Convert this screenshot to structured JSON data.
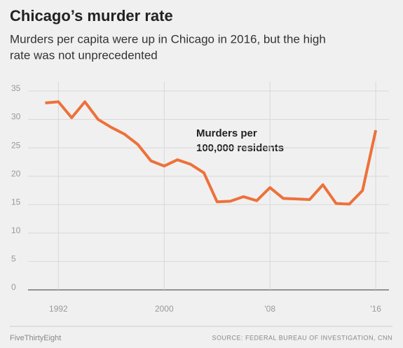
{
  "chart_data": {
    "type": "line",
    "title": "Chicago’s murder rate",
    "subtitle": [
      "Murders per capita were up in Chicago in 2016, but the high",
      "rate was not unprecedented"
    ],
    "annotation": [
      "Murders per",
      "100,000 residents"
    ],
    "x": [
      1991,
      1992,
      1993,
      1994,
      1995,
      1996,
      1997,
      1998,
      1999,
      2000,
      2001,
      2002,
      2003,
      2004,
      2005,
      2006,
      2007,
      2008,
      2009,
      2010,
      2011,
      2012,
      2013,
      2014,
      2015,
      2016
    ],
    "series": [
      {
        "name": "Murders per 100,000 residents",
        "color": "#ed713a",
        "values": [
          32.9,
          33.1,
          30.3,
          33.1,
          30.0,
          28.6,
          27.4,
          25.6,
          22.7,
          21.8,
          22.9,
          22.1,
          20.6,
          15.5,
          15.6,
          16.4,
          15.7,
          18.0,
          16.1,
          16.0,
          15.9,
          18.5,
          15.2,
          15.1,
          17.5,
          28.1
        ]
      }
    ],
    "xlim": [
      1989.7,
      2017
    ],
    "xticks": [
      1992,
      2000,
      {
        "value": 2008,
        "label": "'08"
      },
      {
        "value": 2016,
        "label": "'16"
      }
    ],
    "ylim": [
      0,
      36.6
    ],
    "yticks": [
      0,
      5,
      10,
      15,
      20,
      25,
      30,
      35
    ],
    "grid": true,
    "footer_left": "FiveThirtyEight",
    "footer_right": "SOURCE: FEDERAL BUREAU OF INVESTIGATION, CNN"
  }
}
